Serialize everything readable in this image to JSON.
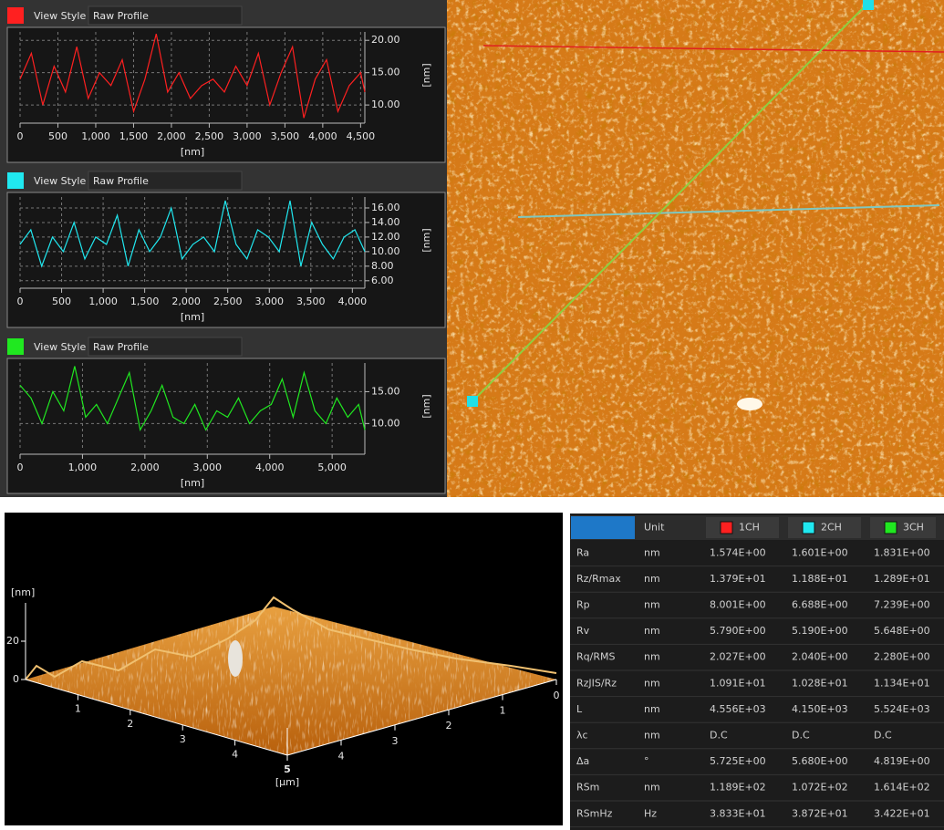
{
  "chart_data": [
    {
      "type": "line",
      "view_style_label": "View Style",
      "view_style": "Raw Profile",
      "color": "#ff2020",
      "xlabel": "[nm]",
      "ylabel": "[nm]",
      "x": [
        0,
        150,
        300,
        450,
        600,
        750,
        900,
        1050,
        1200,
        1350,
        1500,
        1650,
        1800,
        1950,
        2100,
        2250,
        2400,
        2550,
        2700,
        2850,
        3000,
        3150,
        3300,
        3450,
        3600,
        3750,
        3900,
        4050,
        4200,
        4350,
        4500,
        4556
      ],
      "values": [
        14,
        18,
        10,
        16,
        12,
        19,
        11,
        15,
        13,
        17,
        9,
        14,
        21,
        12,
        15,
        11,
        13,
        14,
        12,
        16,
        13,
        18,
        10,
        15,
        19,
        8,
        14,
        17,
        9,
        13,
        15,
        12
      ],
      "xlim": [
        0,
        4556
      ],
      "ylim": [
        7.9,
        21.3
      ],
      "xticks": [
        0,
        500,
        {
          "value": 1000,
          "label": "1,000"
        },
        {
          "value": 1500,
          "label": "1,500"
        },
        {
          "value": 2000,
          "label": "2,000"
        },
        {
          "value": 2500,
          "label": "2,500"
        },
        {
          "value": 3000,
          "label": "3,000"
        },
        {
          "value": 3500,
          "label": "3,500"
        },
        {
          "value": 4000,
          "label": "4,000"
        },
        {
          "value": 4500,
          "label": "4,500"
        }
      ],
      "yticks": [
        {
          "value": 10,
          "label": "10.00"
        },
        {
          "value": 15,
          "label": "15.00"
        },
        {
          "value": 20,
          "label": "20.00"
        }
      ],
      "grid": true
    },
    {
      "type": "line",
      "view_style_label": "View Style",
      "view_style": "Raw Profile",
      "color": "#20e8f0",
      "xlabel": "[nm]",
      "ylabel": "[nm]",
      "x": [
        0,
        130,
        260,
        390,
        520,
        650,
        780,
        910,
        1040,
        1170,
        1300,
        1430,
        1560,
        1690,
        1820,
        1950,
        2080,
        2210,
        2340,
        2470,
        2600,
        2730,
        2860,
        2990,
        3120,
        3250,
        3380,
        3510,
        3640,
        3770,
        3900,
        4030,
        4150
      ],
      "values": [
        11,
        13,
        8,
        12,
        10,
        14,
        9,
        12,
        11,
        15,
        8,
        13,
        10,
        12,
        16,
        9,
        11,
        12,
        10,
        17,
        11,
        9,
        13,
        12,
        10,
        17,
        8,
        14,
        11,
        9,
        12,
        13,
        10
      ],
      "xlim": [
        0,
        4150
      ],
      "ylim": [
        5.6,
        17.5
      ],
      "xticks": [
        0,
        500,
        {
          "value": 1000,
          "label": "1,000"
        },
        {
          "value": 1500,
          "label": "1,500"
        },
        {
          "value": 2000,
          "label": "2,000"
        },
        {
          "value": 2500,
          "label": "2,500"
        },
        {
          "value": 3000,
          "label": "3,000"
        },
        {
          "value": 3500,
          "label": "3,500"
        },
        {
          "value": 4000,
          "label": "4,000"
        }
      ],
      "yticks": [
        {
          "value": 6,
          "label": "6.00"
        },
        {
          "value": 8,
          "label": "8.00"
        },
        {
          "value": 10,
          "label": "10.00"
        },
        {
          "value": 12,
          "label": "12.00"
        },
        {
          "value": 14,
          "label": "14.00"
        },
        {
          "value": 16,
          "label": "16.00"
        }
      ],
      "grid": true
    },
    {
      "type": "line",
      "view_style_label": "View Style",
      "view_style": "Raw Profile",
      "color": "#20e820",
      "xlabel": "[nm]",
      "ylabel": "[nm]",
      "x": [
        0,
        175,
        350,
        525,
        700,
        875,
        1050,
        1225,
        1400,
        1575,
        1750,
        1925,
        2100,
        2275,
        2450,
        2625,
        2800,
        2975,
        3150,
        3325,
        3500,
        3675,
        3850,
        4025,
        4200,
        4375,
        4550,
        4725,
        4900,
        5075,
        5250,
        5425,
        5524
      ],
      "values": [
        16,
        14,
        10,
        15,
        12,
        19,
        11,
        13,
        10,
        14,
        18,
        9,
        12,
        16,
        11,
        10,
        13,
        9,
        12,
        11,
        14,
        10,
        12,
        13,
        17,
        11,
        18,
        12,
        10,
        14,
        11,
        13,
        9
      ],
      "xlim": [
        0,
        5524
      ],
      "ylim": [
        5.9,
        19.5
      ],
      "xticks": [
        0,
        {
          "value": 1000,
          "label": "1,000"
        },
        {
          "value": 2000,
          "label": "2,000"
        },
        {
          "value": 3000,
          "label": "3,000"
        },
        {
          "value": 4000,
          "label": "4,000"
        },
        {
          "value": 5000,
          "label": "5,000"
        }
      ],
      "yticks": [
        {
          "value": 10,
          "label": "10.00"
        },
        {
          "value": 15,
          "label": "15.00"
        }
      ],
      "grid": true
    },
    {
      "type": "surface3d",
      "zlabel": "[nm]",
      "xlabel": "[μm]",
      "zlim": [
        0,
        40
      ],
      "zticks": [
        0,
        20
      ],
      "xlim": [
        0,
        5
      ],
      "xticks": [
        1,
        2,
        3,
        4,
        5
      ],
      "ylim": [
        0,
        5
      ],
      "yticks": [
        0,
        1,
        2,
        3,
        4
      ]
    }
  ],
  "table": {
    "columns": [
      "Unit",
      "1CH",
      "2CH",
      "3CH"
    ],
    "rows": [
      [
        "Ra",
        "nm",
        "1.574E+00",
        "1.601E+00",
        "1.831E+00"
      ],
      [
        "Rz/Rmax",
        "nm",
        "1.379E+01",
        "1.188E+01",
        "1.289E+01"
      ],
      [
        "Rp",
        "nm",
        "8.001E+00",
        "6.688E+00",
        "7.239E+00"
      ],
      [
        "Rv",
        "nm",
        "5.790E+00",
        "5.190E+00",
        "5.648E+00"
      ],
      [
        "Rq/RMS",
        "nm",
        "2.027E+00",
        "2.040E+00",
        "2.280E+00"
      ],
      [
        "RzJIS/Rz",
        "nm",
        "1.091E+01",
        "1.028E+01",
        "1.134E+01"
      ],
      [
        "L",
        "nm",
        "4.556E+03",
        "4.150E+03",
        "5.524E+03"
      ],
      [
        "λc",
        "nm",
        "D.C",
        "D.C",
        "D.C"
      ],
      [
        "Δa",
        "°",
        "5.725E+00",
        "5.680E+00",
        "4.819E+00"
      ],
      [
        "RSm",
        "nm",
        "1.189E+02",
        "1.072E+02",
        "1.614E+02"
      ],
      [
        "RSmHz",
        "Hz",
        "3.833E+01",
        "3.872E+01",
        "3.422E+01"
      ]
    ]
  }
}
